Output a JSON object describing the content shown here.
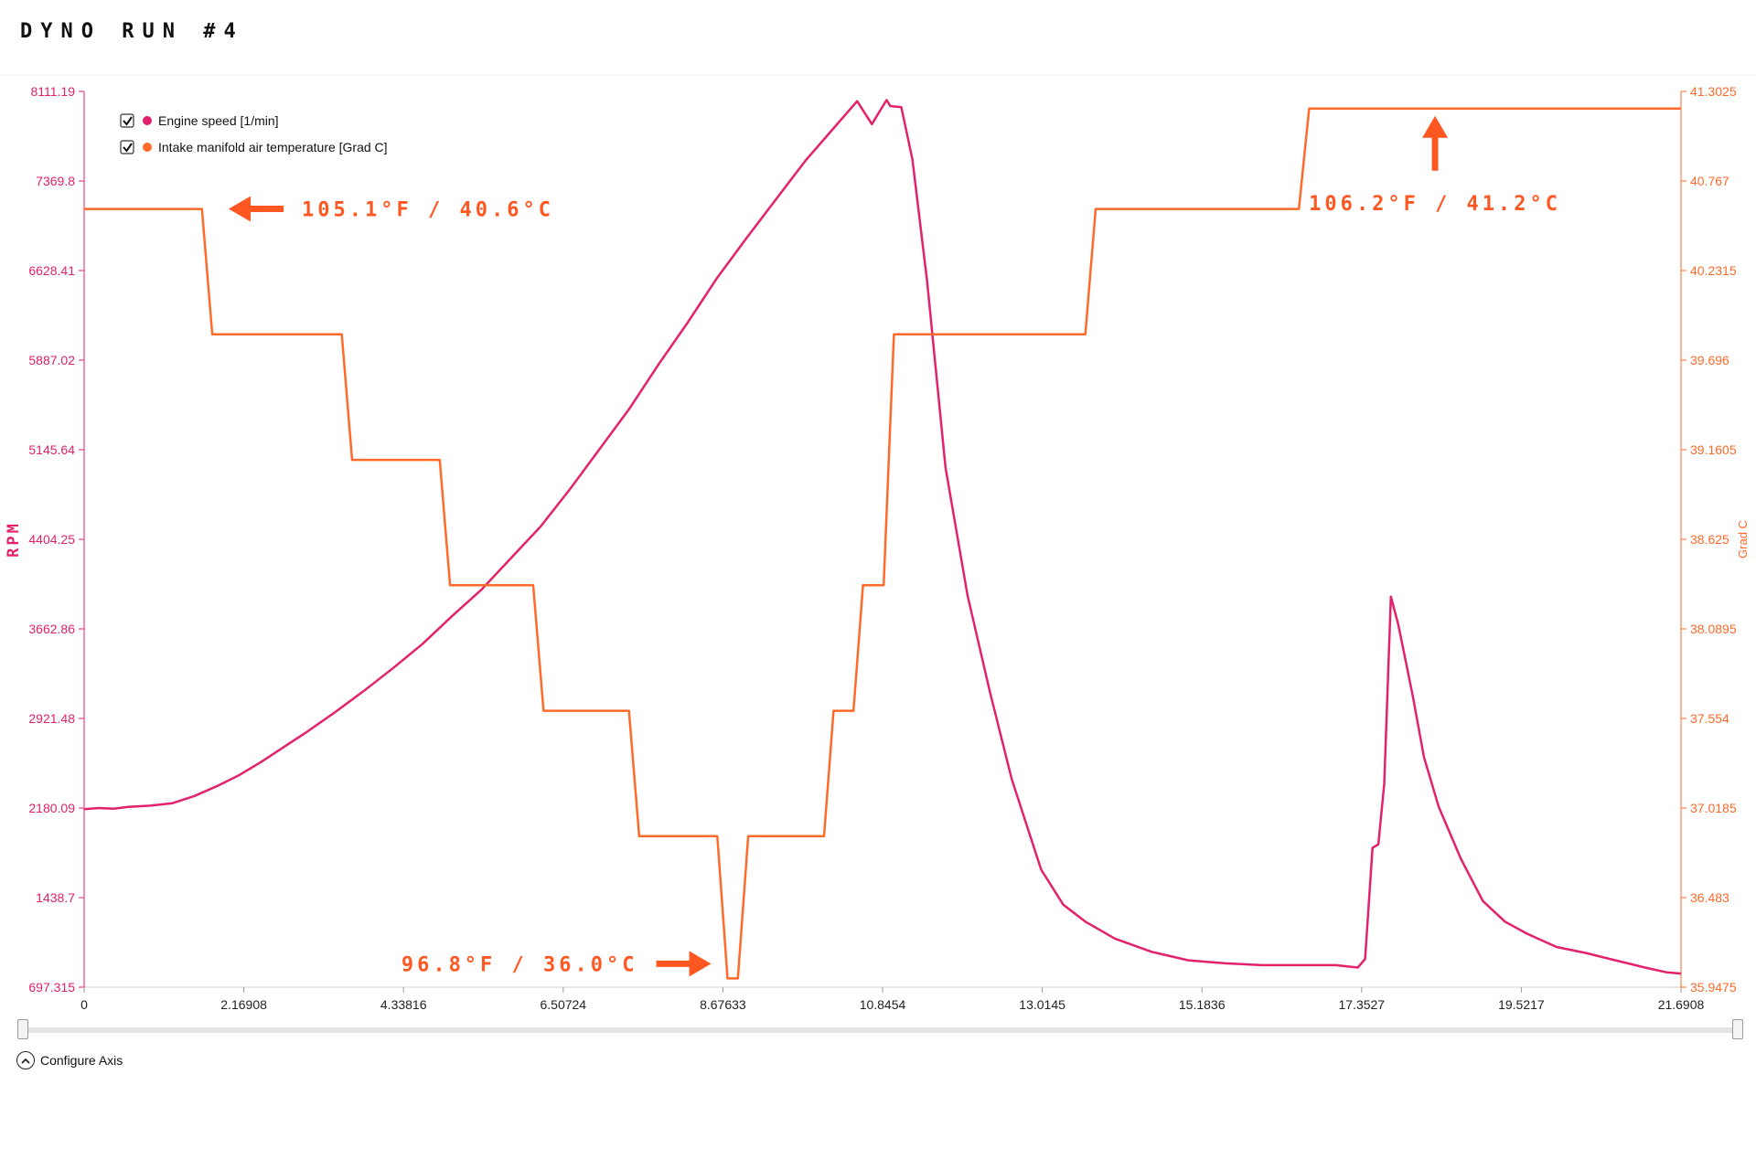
{
  "page": {
    "title": "DYNO RUN #4"
  },
  "colors": {
    "rpm": "#e2226a",
    "temp": "#ff6a2a",
    "annotation": "#ff5722",
    "axis": "#cfcfcf",
    "text": "#111111"
  },
  "legend": {
    "items": [
      {
        "label": "Engine speed [1/min]",
        "checked": true
      },
      {
        "label": "Intake manifold air temperature [Grad C]",
        "checked": true
      }
    ]
  },
  "controls": {
    "configure_axis_label": "Configure Axis"
  },
  "chart_data": {
    "type": "line",
    "title": "DYNO RUN #4",
    "grid": false,
    "legend_position": "top-left",
    "x": {
      "range": [
        0,
        21.6908
      ],
      "ticks": [
        "0",
        "2.16908",
        "4.33816",
        "6.50724",
        "8.67633",
        "10.8454",
        "13.0145",
        "15.1836",
        "17.3527",
        "19.5217",
        "21.6908"
      ]
    },
    "y_left": {
      "label": "RPM",
      "range": [
        697.315,
        8111.19
      ],
      "ticks": [
        "697.315",
        "1438.7",
        "2180.09",
        "2921.48",
        "3662.86",
        "4404.25",
        "5145.64",
        "5887.02",
        "6628.41",
        "7369.8",
        "8111.19"
      ]
    },
    "y_right": {
      "label": "Grad C",
      "range": [
        35.9475,
        41.3025
      ],
      "ticks": [
        "35.9475",
        "36.483",
        "37.0185",
        "37.554",
        "38.0895",
        "38.625",
        "39.1605",
        "39.696",
        "40.2315",
        "40.767",
        "41.3025"
      ]
    },
    "series": [
      {
        "name": "Engine speed [1/min]",
        "axis": "left",
        "x": [
          0,
          0.2,
          0.4,
          0.6,
          0.9,
          1.2,
          1.5,
          1.8,
          2.1,
          2.4,
          2.7,
          3.0,
          3.4,
          3.8,
          4.2,
          4.6,
          5.0,
          5.4,
          5.8,
          6.2,
          6.6,
          7.0,
          7.4,
          7.8,
          8.2,
          8.6,
          9.0,
          9.4,
          9.8,
          10.2,
          10.5,
          10.7,
          10.9,
          10.95,
          11.1,
          11.25,
          11.45,
          11.7,
          12.0,
          12.3,
          12.6,
          13.0,
          13.3,
          13.6,
          14.0,
          14.5,
          15.0,
          15.5,
          16.0,
          16.5,
          17.0,
          17.3,
          17.4,
          17.5,
          17.58,
          17.66,
          17.75,
          17.85,
          17.95,
          18.05,
          18.2,
          18.4,
          18.7,
          19.0,
          19.3,
          19.6,
          20.0,
          20.4,
          20.8,
          21.2,
          21.5,
          21.6908
        ],
        "values": [
          2170,
          2180,
          2175,
          2190,
          2200,
          2220,
          2280,
          2360,
          2450,
          2560,
          2680,
          2800,
          2970,
          3150,
          3340,
          3540,
          3770,
          3990,
          4250,
          4510,
          4820,
          5150,
          5480,
          5850,
          6200,
          6570,
          6900,
          7220,
          7540,
          7820,
          8030,
          7840,
          8040,
          7990,
          7980,
          7550,
          6540,
          5000,
          3940,
          3150,
          2420,
          1670,
          1380,
          1240,
          1100,
          990,
          920,
          895,
          880,
          880,
          880,
          860,
          930,
          1850,
          1880,
          2380,
          3930,
          3700,
          3400,
          3100,
          2600,
          2190,
          1760,
          1410,
          1240,
          1140,
          1030,
          980,
          920,
          860,
          820,
          810
        ]
      },
      {
        "name": "Intake manifold air temperature [Grad C]",
        "axis": "right",
        "x": [
          0,
          1.6,
          1.74,
          3.5,
          3.64,
          4.83,
          4.97,
          6.1,
          6.24,
          7.4,
          7.54,
          8.6,
          8.74,
          8.88,
          9.02,
          10.05,
          10.18,
          10.45,
          10.58,
          10.86,
          11.0,
          13.6,
          13.74,
          16.5,
          16.64,
          21.6908
        ],
        "values": [
          40.6,
          40.6,
          39.85,
          39.85,
          39.1,
          39.1,
          38.35,
          38.35,
          37.6,
          37.6,
          36.85,
          36.85,
          36.0,
          36.0,
          36.85,
          36.85,
          37.6,
          37.6,
          38.35,
          38.35,
          39.85,
          39.85,
          40.6,
          40.6,
          41.2,
          41.2
        ]
      }
    ],
    "annotations": [
      {
        "text": "105.1°F / 40.6°C",
        "x": 1.74,
        "y": 40.6,
        "axis": "right",
        "arrow": "left"
      },
      {
        "text": "106.2°F / 41.2°C",
        "x": 18.35,
        "y": 41.2,
        "axis": "right",
        "arrow": "up"
      },
      {
        "text": "96.8°F / 36.0°C",
        "x": 8.74,
        "y": 36.0,
        "axis": "right",
        "arrow": "right"
      }
    ]
  }
}
